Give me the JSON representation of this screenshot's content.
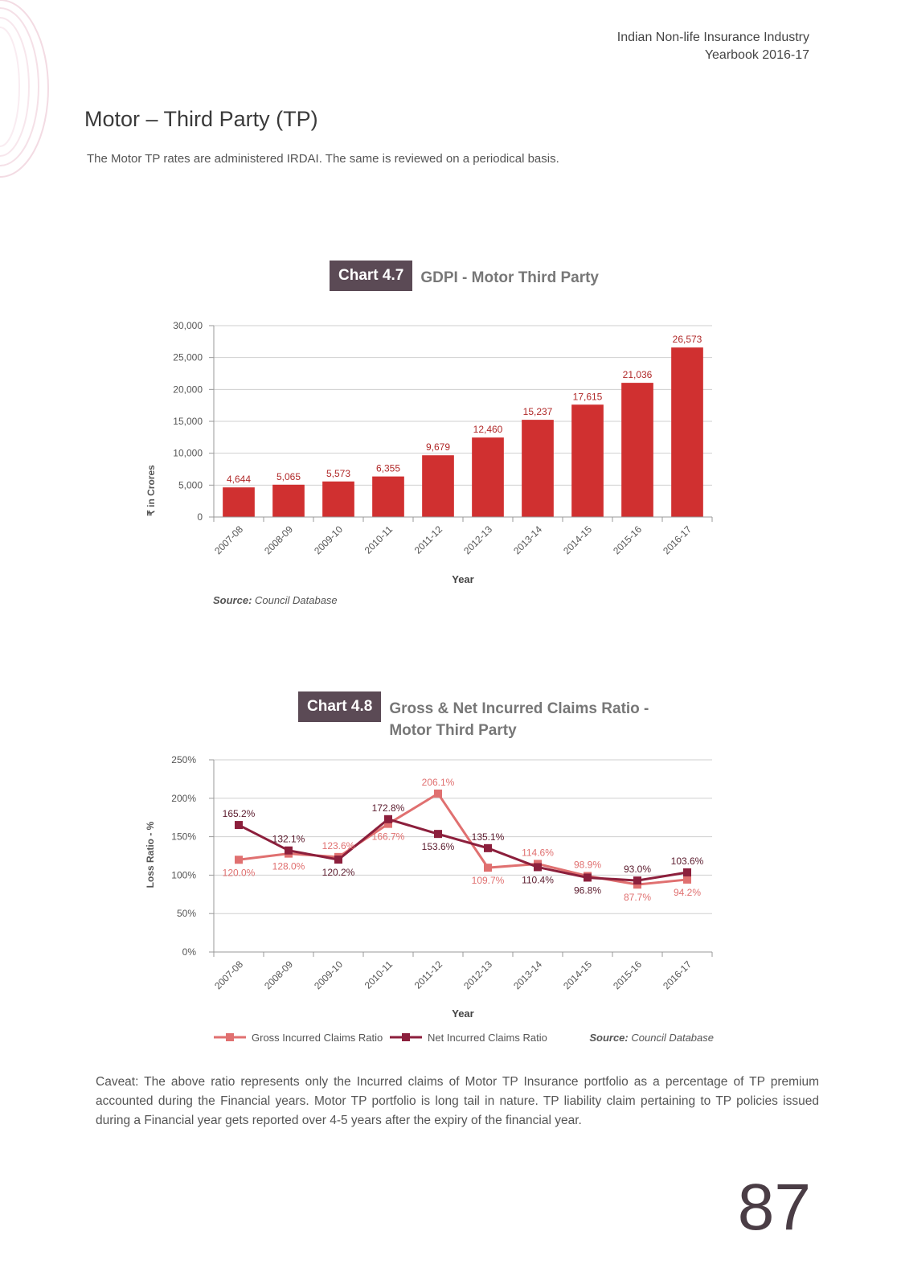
{
  "header": {
    "line1": "Indian Non-life Insurance Industry",
    "line2": "Yearbook 2016-17"
  },
  "section": {
    "title": "Motor – Third Party (TP)",
    "intro": "The Motor TP rates are administered IRDAI. The same is reviewed on a periodical basis."
  },
  "colors": {
    "bar": "#d03030",
    "gross": "#e07070",
    "net": "#8c1f3c",
    "badge": "#5b4a55"
  },
  "chart_data": [
    {
      "type": "bar",
      "badge": "Chart 4.7",
      "title": "GDPI - Motor Third Party",
      "categories": [
        "2007-08",
        "2008-09",
        "2009-10",
        "2010-11",
        "2011-12",
        "2012-13",
        "2013-14",
        "2014-15",
        "2015-16",
        "2016-17"
      ],
      "values": [
        4644,
        5065,
        5573,
        6355,
        9679,
        12460,
        15237,
        17615,
        21036,
        26573
      ],
      "value_labels": [
        "4,644",
        "5,065",
        "5,573",
        "6,355",
        "9,679",
        "12,460",
        "15,237",
        "17,615",
        "21,036",
        "26,573"
      ],
      "ylim": [
        0,
        30000
      ],
      "yticks": [
        "0",
        "5,000",
        "10,000",
        "15,000",
        "20,000",
        "25,000",
        "30,000"
      ],
      "xlabel": "Year",
      "ylabel": "₹ in Crores",
      "source_prefix": "Source:",
      "source_text": "Council Database"
    },
    {
      "type": "line",
      "badge": "Chart 4.8",
      "title_line1": "Gross & Net Incurred Claims Ratio -",
      "title_line2": "Motor Third Party",
      "categories": [
        "2007-08",
        "2008-09",
        "2009-10",
        "2010-11",
        "2011-12",
        "2012-13",
        "2013-14",
        "2014-15",
        "2015-16",
        "2016-17"
      ],
      "series": [
        {
          "name": "Gross Incurred Claims Ratio",
          "values": [
            120.0,
            128.0,
            123.6,
            166.7,
            206.1,
            109.7,
            114.6,
            98.9,
            87.7,
            94.2
          ],
          "labels": [
            "120.0%",
            "128.0%",
            "123.6%",
            "166.7%",
            "206.1%",
            "109.7%",
            "114.6%",
            "98.9%",
            "87.7%",
            "94.2%"
          ]
        },
        {
          "name": "Net Incurred Claims Ratio",
          "values": [
            165.2,
            132.1,
            120.2,
            172.8,
            153.6,
            135.1,
            110.4,
            96.8,
            93.0,
            103.6
          ],
          "labels": [
            "165.2%",
            "132.1%",
            "120.2%",
            "172.8%",
            "153.6%",
            "135.1%",
            "110.4%",
            "96.8%",
            "93.0%",
            "103.6%"
          ]
        }
      ],
      "ylim": [
        0,
        250
      ],
      "yticks": [
        "0%",
        "50%",
        "100%",
        "150%",
        "200%",
        "250%"
      ],
      "xlabel": "Year",
      "ylabel": "Loss Ratio - %",
      "source_prefix": "Source:",
      "source_text": "Council Database"
    }
  ],
  "caveat": "Caveat: The above ratio represents only the Incurred claims of Motor TP Insurance portfolio as a percentage of TP premium accounted during the Financial years. Motor TP portfolio is long tail in nature. TP liability claim pertaining to TP policies issued during a Financial year gets reported over 4-5 years after the expiry of the financial year.",
  "page_number": "87"
}
